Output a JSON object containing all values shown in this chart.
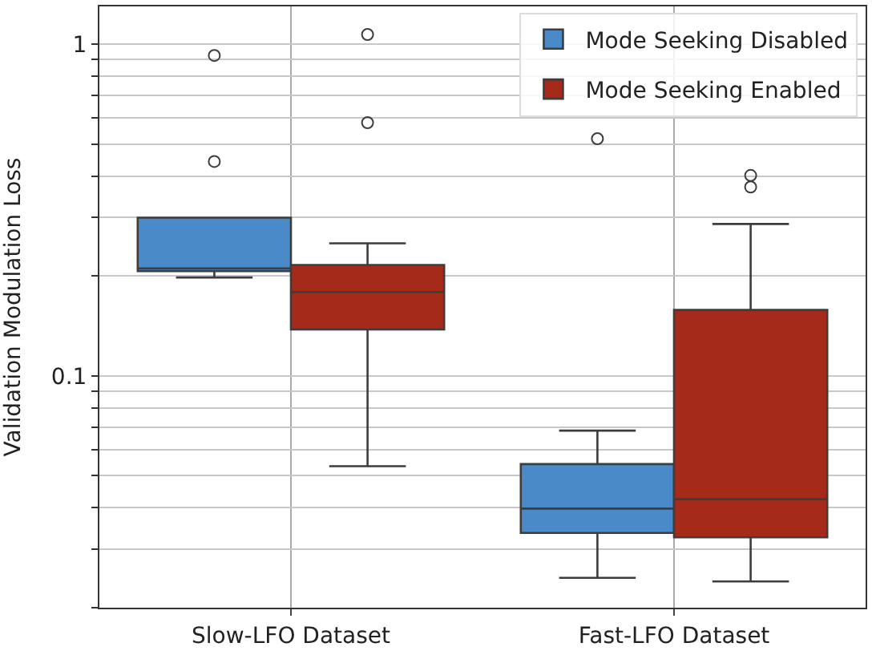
{
  "chart_data": {
    "type": "box",
    "ylabel": "Validation Modulation Loss",
    "categories": [
      "Slow-LFO Dataset",
      "Fast-LFO Dataset"
    ],
    "log": "y",
    "ylim": [
      0.02,
      1.3
    ],
    "yticks": [
      {
        "value": 0.02,
        "label": null
      },
      {
        "value": 0.03,
        "label": null
      },
      {
        "value": 0.04,
        "label": null
      },
      {
        "value": 0.05,
        "label": null
      },
      {
        "value": 0.06,
        "label": null
      },
      {
        "value": 0.07,
        "label": null
      },
      {
        "value": 0.08,
        "label": null
      },
      {
        "value": 0.09,
        "label": null
      },
      {
        "value": 0.1,
        "label": "0.1"
      },
      {
        "value": 0.2,
        "label": null
      },
      {
        "value": 0.3,
        "label": null
      },
      {
        "value": 0.4,
        "label": null
      },
      {
        "value": 0.5,
        "label": null
      },
      {
        "value": 0.6,
        "label": null
      },
      {
        "value": 0.7,
        "label": null
      },
      {
        "value": 0.8,
        "label": null
      },
      {
        "value": 0.9,
        "label": null
      },
      {
        "value": 1,
        "label": "1"
      }
    ],
    "grid": true,
    "legend": "top right",
    "series": [
      {
        "name": "Mode Seeking Disabled",
        "color": "#4a8ac8",
        "boxes": [
          {
            "low": 0.198,
            "q1": 0.207,
            "median": 0.211,
            "q3": 0.3,
            "high": 0.3,
            "outliers": [
              0.925,
              0.443
            ]
          },
          {
            "low": 0.0246,
            "q1": 0.0336,
            "median": 0.0398,
            "q3": 0.0542,
            "high": 0.0684,
            "outliers": [
              0.519
            ]
          }
        ]
      },
      {
        "name": "Mode Seeking Enabled",
        "color": "#a52a1a",
        "boxes": [
          {
            "low": 0.0534,
            "q1": 0.138,
            "median": 0.179,
            "q3": 0.216,
            "high": 0.251,
            "outliers": [
              1.07,
              0.58
            ]
          },
          {
            "low": 0.024,
            "q1": 0.0326,
            "median": 0.0425,
            "q3": 0.158,
            "high": 0.287,
            "outliers": [
              0.402,
              0.371
            ]
          }
        ]
      }
    ]
  }
}
